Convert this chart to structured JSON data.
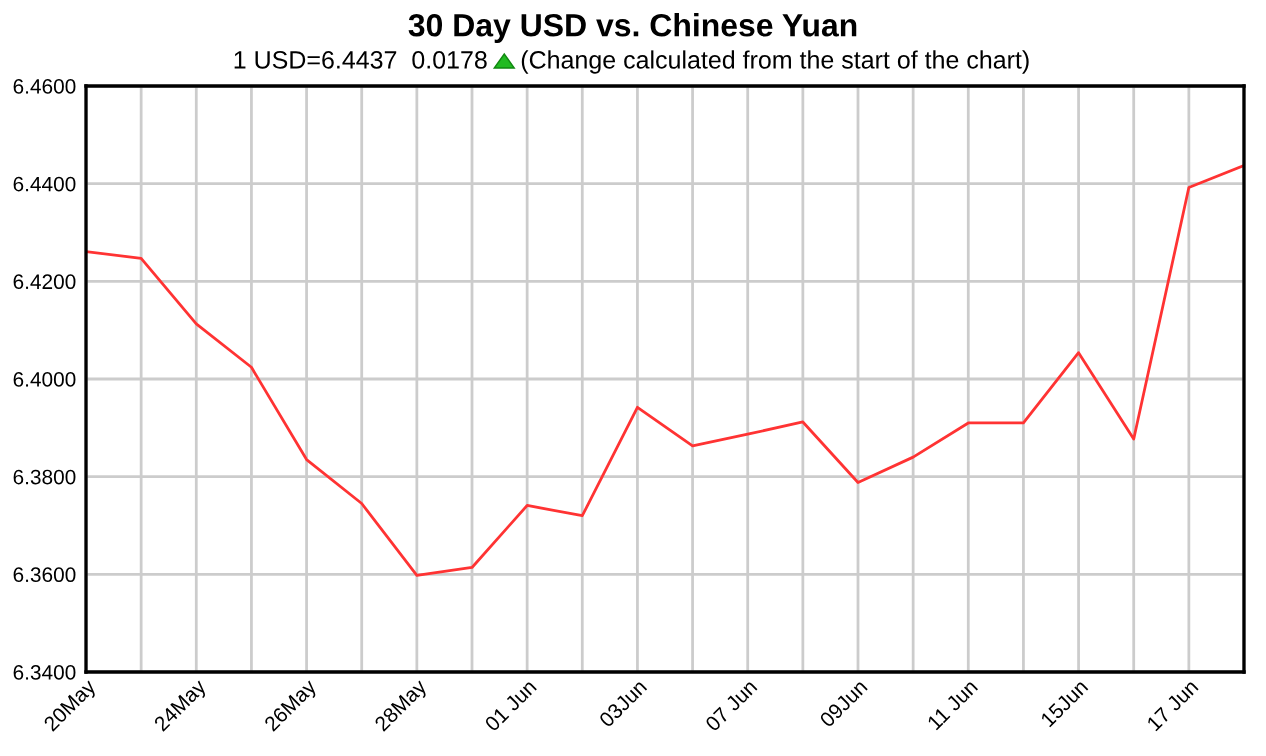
{
  "chart_data": {
    "type": "line",
    "title": "30 Day USD vs. Chinese Yuan",
    "subtitle": "1 USD=6.4437  0.0178",
    "annotations": [
      "(Change calculated from the start of the chart)"
    ],
    "categories": [
      "20May",
      null,
      "24May",
      null,
      "26May",
      null,
      "28May",
      null,
      "01 Jun",
      null,
      "03Jun",
      null,
      "07 Jun",
      null,
      "09Jun",
      null,
      "11 Jun",
      null,
      "15Jun",
      null,
      "17 Jun",
      null
    ],
    "series": [
      {
        "color": "#ff3333",
        "values": [
          6.4261,
          6.4247,
          6.4113,
          6.4024,
          6.3835,
          6.3745,
          6.3598,
          6.3614,
          6.3741,
          6.372,
          6.3942,
          6.3863,
          6.3887,
          6.3912,
          6.3788,
          6.384,
          6.391,
          6.391,
          6.4054,
          6.3877,
          6.4392,
          6.4437
        ]
      }
    ],
    "ylim": [
      6.34,
      6.46
    ],
    "yticks": [
      {
        "value": 6.34,
        "label": "6.3400"
      },
      {
        "value": 6.36,
        "label": "6.3600"
      },
      {
        "value": 6.38,
        "label": "6.3800"
      },
      {
        "value": 6.4,
        "label": "6.4000"
      },
      {
        "value": 6.42,
        "label": "6.4200"
      },
      {
        "value": 6.44,
        "label": "6.4400"
      },
      {
        "value": 6.46,
        "label": "6.4600"
      }
    ],
    "grid": true,
    "legend": false,
    "marker": "none",
    "line_style": "solid"
  }
}
